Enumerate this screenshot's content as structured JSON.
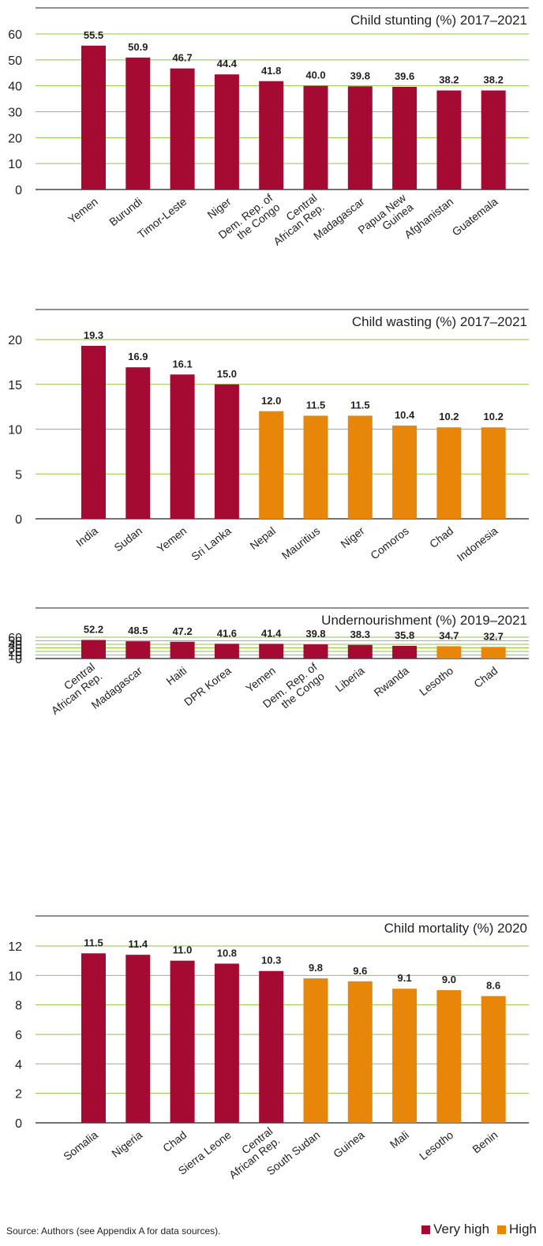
{
  "colors": {
    "very_high": "#a50a32",
    "high": "#e8860a",
    "grid": "#8dc63f",
    "axis": "#231f20"
  },
  "legend": [
    {
      "label": "Very high",
      "color": "#a50a32"
    },
    {
      "label": "High",
      "color": "#e8860a"
    }
  ],
  "source": "Source: Authors (see Appendix A for data sources).",
  "chart_data": [
    {
      "type": "bar",
      "title": "Child stunting (%) 2017–2021",
      "ylim": [
        0,
        60
      ],
      "yticks": [
        0,
        10,
        20,
        30,
        40,
        50,
        60
      ],
      "categories": [
        "Yemen",
        "Burundi",
        "Timor-Leste",
        "Niger",
        "Dem. Rep. of\nthe Congo",
        "Central\nAfrican Rep.",
        "Madagascar",
        "Papua New\nGuinea",
        "Afghanistan",
        "Guatemala"
      ],
      "values": [
        55.5,
        50.9,
        46.7,
        44.4,
        41.8,
        40.0,
        39.8,
        39.6,
        38.2,
        38.2
      ],
      "labels": [
        "55.5",
        "50.9",
        "46.7",
        "44.4",
        "41.8",
        "40.0",
        "39.8",
        "39.6",
        "38.2",
        "38.2"
      ],
      "levels": [
        "very_high",
        "very_high",
        "very_high",
        "very_high",
        "very_high",
        "very_high",
        "very_high",
        "very_high",
        "very_high",
        "very_high"
      ],
      "grid": true
    },
    {
      "type": "bar",
      "title": "Child wasting (%) 2017–2021",
      "ylim": [
        0,
        20
      ],
      "yticks": [
        0,
        5,
        10,
        15,
        20
      ],
      "categories": [
        "India",
        "Sudan",
        "Yemen",
        "Sri Lanka",
        "Nepal",
        "Mauritius",
        "Niger",
        "Comoros",
        "Chad",
        "Indonesia"
      ],
      "values": [
        19.3,
        16.9,
        16.1,
        15.0,
        12.0,
        11.5,
        11.5,
        10.4,
        10.2,
        10.2
      ],
      "labels": [
        "19.3",
        "16.9",
        "16.1",
        "15.0",
        "12.0",
        "11.5",
        "11.5",
        "10.4",
        "10.2",
        "10.2"
      ],
      "levels": [
        "very_high",
        "very_high",
        "very_high",
        "very_high",
        "high",
        "high",
        "high",
        "high",
        "high",
        "high"
      ],
      "grid": true
    },
    {
      "type": "bar",
      "title": "Undernourishment (%) 2019–2021",
      "ylim": [
        0,
        60
      ],
      "yticks": [
        0,
        10,
        20,
        30,
        40,
        50,
        60
      ],
      "categories": [
        "Central\nAfrican Rep.",
        "Madagascar",
        "Haiti",
        "DPR Korea",
        "Yemen",
        "Dem. Rep. of\nthe Congo",
        "Liberia",
        "Rwanda",
        "Lesotho",
        "Chad"
      ],
      "values": [
        52.2,
        48.5,
        47.2,
        41.6,
        41.4,
        39.8,
        38.3,
        35.8,
        34.7,
        32.7
      ],
      "labels": [
        "52.2",
        "48.5",
        "47.2",
        "41.6",
        "41.4",
        "39.8",
        "38.3",
        "35.8",
        "34.7",
        "32.7"
      ],
      "levels": [
        "very_high",
        "very_high",
        "very_high",
        "very_high",
        "very_high",
        "very_high",
        "very_high",
        "very_high",
        "high",
        "high"
      ],
      "grid": true
    },
    {
      "type": "bar",
      "title": "Child mortality (%) 2020",
      "ylim": [
        0,
        12
      ],
      "yticks": [
        0,
        2,
        4,
        6,
        8,
        10,
        12
      ],
      "categories": [
        "Somalia",
        "Nigeria",
        "Chad",
        "Sierra Leone",
        "Central\nAfrican Rep.",
        "South Sudan",
        "Guinea",
        "Mali",
        "Lesotho",
        "Benin"
      ],
      "values": [
        11.5,
        11.4,
        11.0,
        10.8,
        10.3,
        9.8,
        9.6,
        9.1,
        9.0,
        8.6
      ],
      "labels": [
        "11.5",
        "11.4",
        "11.0",
        "10.8",
        "10.3",
        "9.8",
        "9.6",
        "9.1",
        "9.0",
        "8.6"
      ],
      "levels": [
        "very_high",
        "very_high",
        "very_high",
        "very_high",
        "very_high",
        "high",
        "high",
        "high",
        "high",
        "high"
      ],
      "grid": true
    }
  ]
}
